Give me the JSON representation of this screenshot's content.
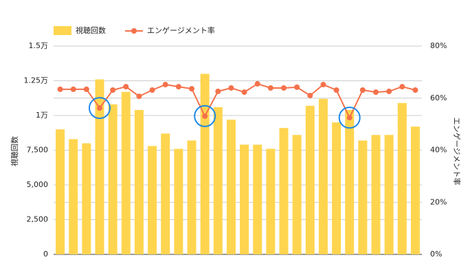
{
  "chart_data": {
    "type": "bar_line",
    "categories": [
      null,
      null,
      null,
      null,
      null,
      null,
      null,
      null,
      null,
      null,
      null,
      null,
      null,
      null,
      null,
      null,
      null,
      null,
      null,
      null,
      null,
      null,
      null,
      null,
      null,
      null,
      null,
      null
    ],
    "series": [
      {
        "name": "視聴回数",
        "type": "bar",
        "color": "#ffd54f",
        "axis": "y",
        "values": [
          9000,
          8300,
          8000,
          12600,
          10800,
          11700,
          10400,
          7800,
          8700,
          7600,
          8200,
          13000,
          10600,
          9700,
          7900,
          7900,
          7600,
          9100,
          8600,
          10700,
          11200,
          9500,
          10400,
          8200,
          8600,
          8600,
          10900,
          9200
        ]
      },
      {
        "name": "エンゲージメント率",
        "type": "line",
        "color": "#f4714b",
        "axis": "y2",
        "values": [
          63.4,
          63.4,
          63.4,
          56.2,
          63.1,
          64.4,
          60.7,
          63.1,
          65.2,
          64.4,
          63.6,
          53.1,
          62.6,
          63.9,
          62.3,
          65.5,
          63.9,
          63.9,
          64.2,
          61.0,
          65.2,
          63.1,
          52.5,
          63.1,
          62.3,
          62.6,
          64.4,
          63.1
        ]
      }
    ],
    "y_label": "視聴回数",
    "y2_label": "エンゲージメント率",
    "ylim": [
      0,
      15000
    ],
    "yticks": [
      0,
      {
        "value": 2500,
        "label": "2,500"
      },
      {
        "value": 5000,
        "label": "5,000"
      },
      {
        "value": 7500,
        "label": "7,500"
      },
      {
        "value": 10000,
        "label": "1万"
      },
      {
        "value": 12500,
        "label": "1.25万"
      },
      {
        "value": 15000,
        "label": "1.5万"
      }
    ],
    "y2lim": [
      0,
      80
    ],
    "y2ticks": [
      {
        "value": 0,
        "label": "0%"
      },
      {
        "value": 20,
        "label": "20%"
      },
      {
        "value": 40,
        "label": "40%"
      },
      {
        "value": 60,
        "label": "60%"
      },
      {
        "value": 80,
        "label": "80%"
      }
    ],
    "highlight": [
      3,
      11,
      22
    ],
    "highlight_color": "#1e88e5",
    "grid": true,
    "legend": "top-left"
  }
}
